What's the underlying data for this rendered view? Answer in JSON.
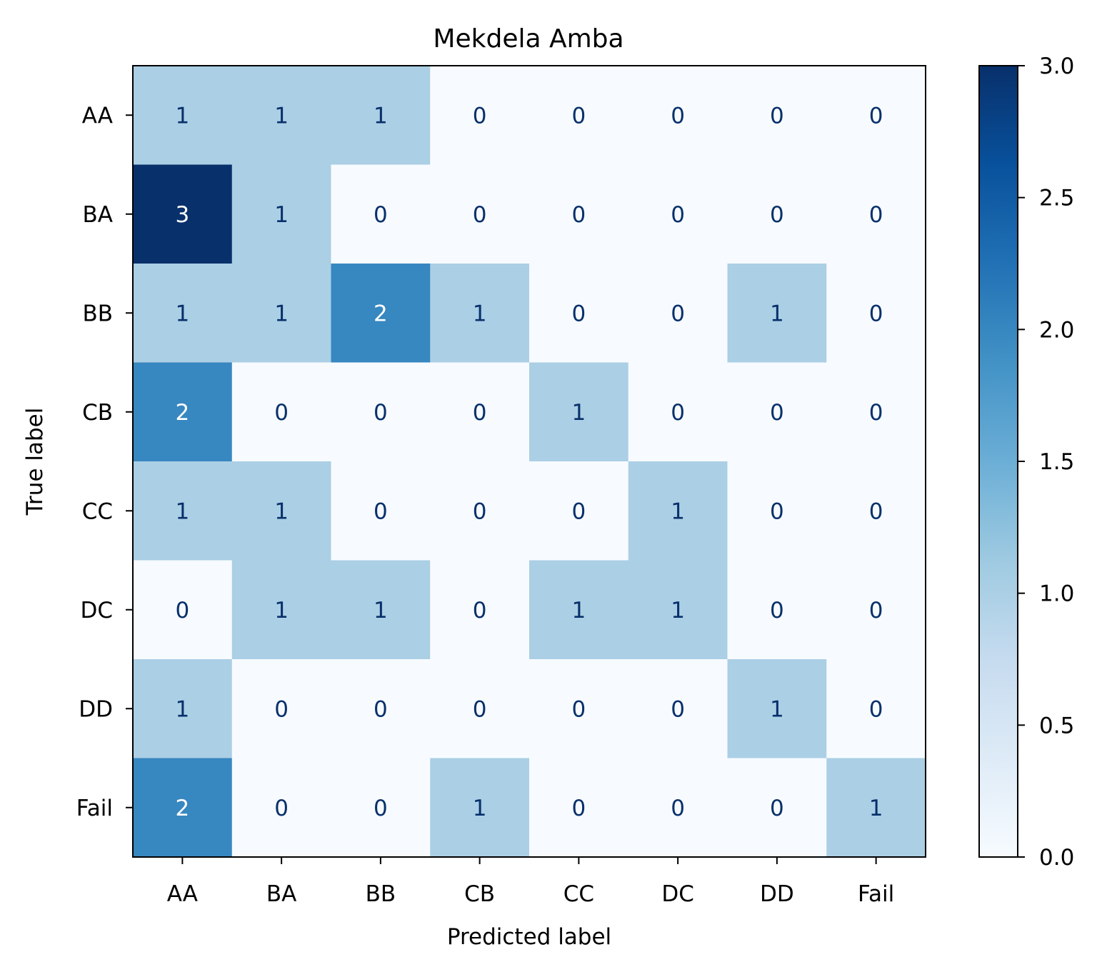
{
  "chart_data": {
    "type": "heatmap",
    "title": "Mekdela Amba",
    "xlabel": "Predicted label",
    "ylabel": "True label",
    "x_categories": [
      "AA",
      "BA",
      "BB",
      "CB",
      "CC",
      "DC",
      "DD",
      "Fail"
    ],
    "y_categories": [
      "AA",
      "BA",
      "BB",
      "CB",
      "CC",
      "DC",
      "DD",
      "Fail"
    ],
    "matrix": [
      [
        1,
        1,
        1,
        0,
        0,
        0,
        0,
        0
      ],
      [
        3,
        1,
        0,
        0,
        0,
        0,
        0,
        0
      ],
      [
        1,
        1,
        2,
        1,
        0,
        0,
        1,
        0
      ],
      [
        2,
        0,
        0,
        0,
        1,
        0,
        0,
        0
      ],
      [
        1,
        1,
        0,
        0,
        0,
        1,
        0,
        0
      ],
      [
        0,
        1,
        1,
        0,
        1,
        1,
        0,
        0
      ],
      [
        1,
        0,
        0,
        0,
        0,
        0,
        1,
        0
      ],
      [
        2,
        0,
        0,
        1,
        0,
        0,
        0,
        1
      ]
    ],
    "colormap": "Blues",
    "colorbar": {
      "range": [
        0,
        3
      ],
      "ticks": [
        "0.0",
        "0.5",
        "1.0",
        "1.5",
        "2.0",
        "2.5",
        "3.0"
      ]
    },
    "cell_colors": {
      "0": "#f7fbff",
      "1": "#abcfe5",
      "2": "#3787c0",
      "3": "#08306b"
    },
    "text_colors": {
      "dark": "#08306b",
      "light": "#ffffff"
    }
  }
}
